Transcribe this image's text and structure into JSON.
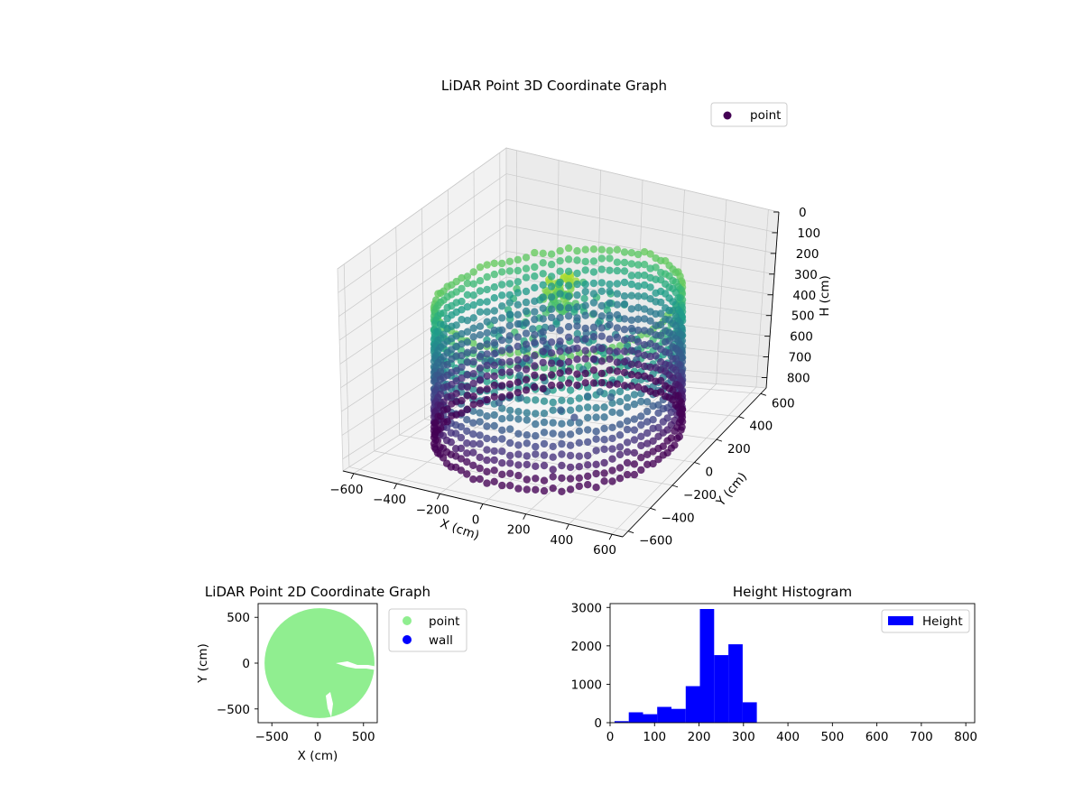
{
  "figure": {
    "background": "#ffffff"
  },
  "chart_data": [
    {
      "type": "scatter",
      "projection": "3d",
      "title": "LiDAR Point 3D Coordinate Graph",
      "xlabel": "X (cm)",
      "ylabel": "Y (cm)",
      "zlabel": "H (cm)",
      "xlim": [
        -650,
        650
      ],
      "ylim": [
        -650,
        650
      ],
      "zlim": [
        0,
        850
      ],
      "z_inverted": true,
      "xticks": [
        -600,
        -400,
        -200,
        0,
        200,
        400,
        600
      ],
      "yticks": [
        -600,
        -400,
        -200,
        0,
        200,
        400,
        600
      ],
      "zticks": [
        0,
        100,
        200,
        300,
        400,
        500,
        600,
        700,
        800
      ],
      "colormap": "viridis",
      "grid": true,
      "legend": {
        "position": "top-right",
        "entries": [
          {
            "label": "point",
            "color": "#440154"
          }
        ]
      },
      "series": [
        {
          "name": "point",
          "components": [
            {
              "kind": "ring",
              "radius": 520,
              "z_min": 220,
              "z_max": 820,
              "angle_step_deg": 4,
              "z_step": 50
            },
            {
              "kind": "inner_ring",
              "radius": 330,
              "z_min": 380,
              "z_max": 600,
              "angle_step_deg": 10
            },
            {
              "kind": "central_cluster",
              "x": 0,
              "y": 0,
              "z_min": 120,
              "z_max": 260
            },
            {
              "kind": "scatter_inner",
              "r_min": 100,
              "r_max": 340,
              "z_min": 250,
              "z_max": 520
            }
          ]
        }
      ]
    },
    {
      "type": "scatter",
      "title": "LiDAR Point 2D Coordinate Graph",
      "xlabel": "X (cm)",
      "ylabel": "Y (cm)",
      "xlim": [
        -650,
        650
      ],
      "ylim": [
        -650,
        650
      ],
      "xticks": [
        -500,
        0,
        500
      ],
      "yticks": [
        -500,
        0,
        500
      ],
      "legend": {
        "position": "outside-right",
        "entries": [
          {
            "label": "point",
            "color": "#90ee90"
          },
          {
            "label": "wall",
            "color": "#0000ff"
          }
        ]
      },
      "series": [
        {
          "name": "point",
          "color": "#90ee90",
          "shape": "disk",
          "center": [
            0,
            0
          ],
          "radius": 600
        },
        {
          "name": "wall",
          "color": "#0000ff",
          "points": []
        }
      ]
    },
    {
      "type": "bar",
      "subtype": "histogram",
      "title": "Height Histogram",
      "xlabel": "",
      "ylabel": "",
      "xlim": [
        0,
        820
      ],
      "ylim": [
        0,
        3100
      ],
      "xticks": [
        0,
        100,
        200,
        300,
        400,
        500,
        600,
        700,
        800
      ],
      "yticks": [
        0,
        1000,
        2000,
        3000
      ],
      "color": "#0000ff",
      "legend": {
        "position": "top-right",
        "entries": [
          {
            "label": "Height",
            "color": "#0000ff"
          }
        ]
      },
      "bins": [
        {
          "x0": 10,
          "x1": 42,
          "value": 40
        },
        {
          "x0": 42,
          "x1": 74,
          "value": 270
        },
        {
          "x0": 74,
          "x1": 106,
          "value": 220
        },
        {
          "x0": 106,
          "x1": 138,
          "value": 410
        },
        {
          "x0": 138,
          "x1": 170,
          "value": 360
        },
        {
          "x0": 170,
          "x1": 202,
          "value": 950
        },
        {
          "x0": 202,
          "x1": 234,
          "value": 2960
        },
        {
          "x0": 234,
          "x1": 266,
          "value": 1760
        },
        {
          "x0": 266,
          "x1": 298,
          "value": 2040
        },
        {
          "x0": 298,
          "x1": 330,
          "value": 530
        },
        {
          "x0": 330,
          "x1": 362,
          "value": 0
        },
        {
          "x0": 362,
          "x1": 394,
          "value": 0
        },
        {
          "x0": 394,
          "x1": 426,
          "value": 0
        },
        {
          "x0": 426,
          "x1": 458,
          "value": 0
        },
        {
          "x0": 458,
          "x1": 490,
          "value": 0
        },
        {
          "x0": 490,
          "x1": 522,
          "value": 0
        },
        {
          "x0": 522,
          "x1": 554,
          "value": 0
        },
        {
          "x0": 554,
          "x1": 586,
          "value": 0
        },
        {
          "x0": 586,
          "x1": 618,
          "value": 0
        },
        {
          "x0": 618,
          "x1": 650,
          "value": 0
        },
        {
          "x0": 650,
          "x1": 682,
          "value": 0
        },
        {
          "x0": 682,
          "x1": 714,
          "value": 0
        },
        {
          "x0": 714,
          "x1": 746,
          "value": 0
        },
        {
          "x0": 746,
          "x1": 778,
          "value": 0
        },
        {
          "x0": 778,
          "x1": 810,
          "value": 0
        }
      ]
    }
  ]
}
